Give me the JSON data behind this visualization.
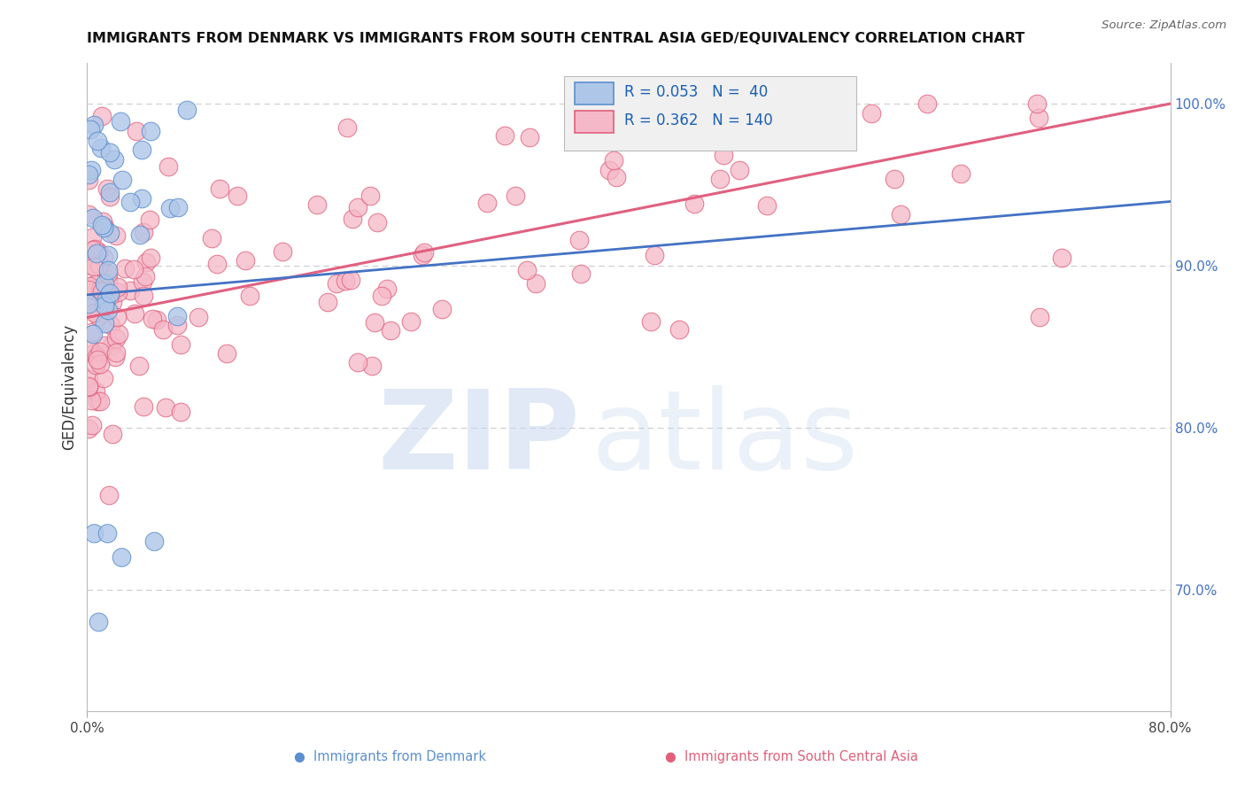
{
  "title": "IMMIGRANTS FROM DENMARK VS IMMIGRANTS FROM SOUTH CENTRAL ASIA GED/EQUIVALENCY CORRELATION CHART",
  "source": "Source: ZipAtlas.com",
  "ylabel": "GED/Equivalency",
  "y_tick_labels": [
    "70.0%",
    "80.0%",
    "90.0%",
    "100.0%"
  ],
  "y_tick_values": [
    0.7,
    0.8,
    0.9,
    1.0
  ],
  "xlim": [
    0.0,
    0.8
  ],
  "ylim": [
    0.625,
    1.025
  ],
  "legend_r_denmark": "0.053",
  "legend_n_denmark": "40",
  "legend_r_sca": "0.362",
  "legend_n_sca": "140",
  "denmark_fill": "#aec6e8",
  "denmark_edge": "#5b8fcf",
  "sca_fill": "#f5b8c8",
  "sca_edge": "#e0607a",
  "denmark_line_color": "#4472c4",
  "sca_line_color": "#e06080",
  "legend_text_color": "#1a5fb4",
  "right_tick_color": "#4472c4",
  "title_color": "#111111",
  "source_color": "#666666",
  "grid_color": "#cccccc",
  "watermark_zip_color": "#c8d8ee",
  "watermark_atlas_color": "#c8d8ee"
}
